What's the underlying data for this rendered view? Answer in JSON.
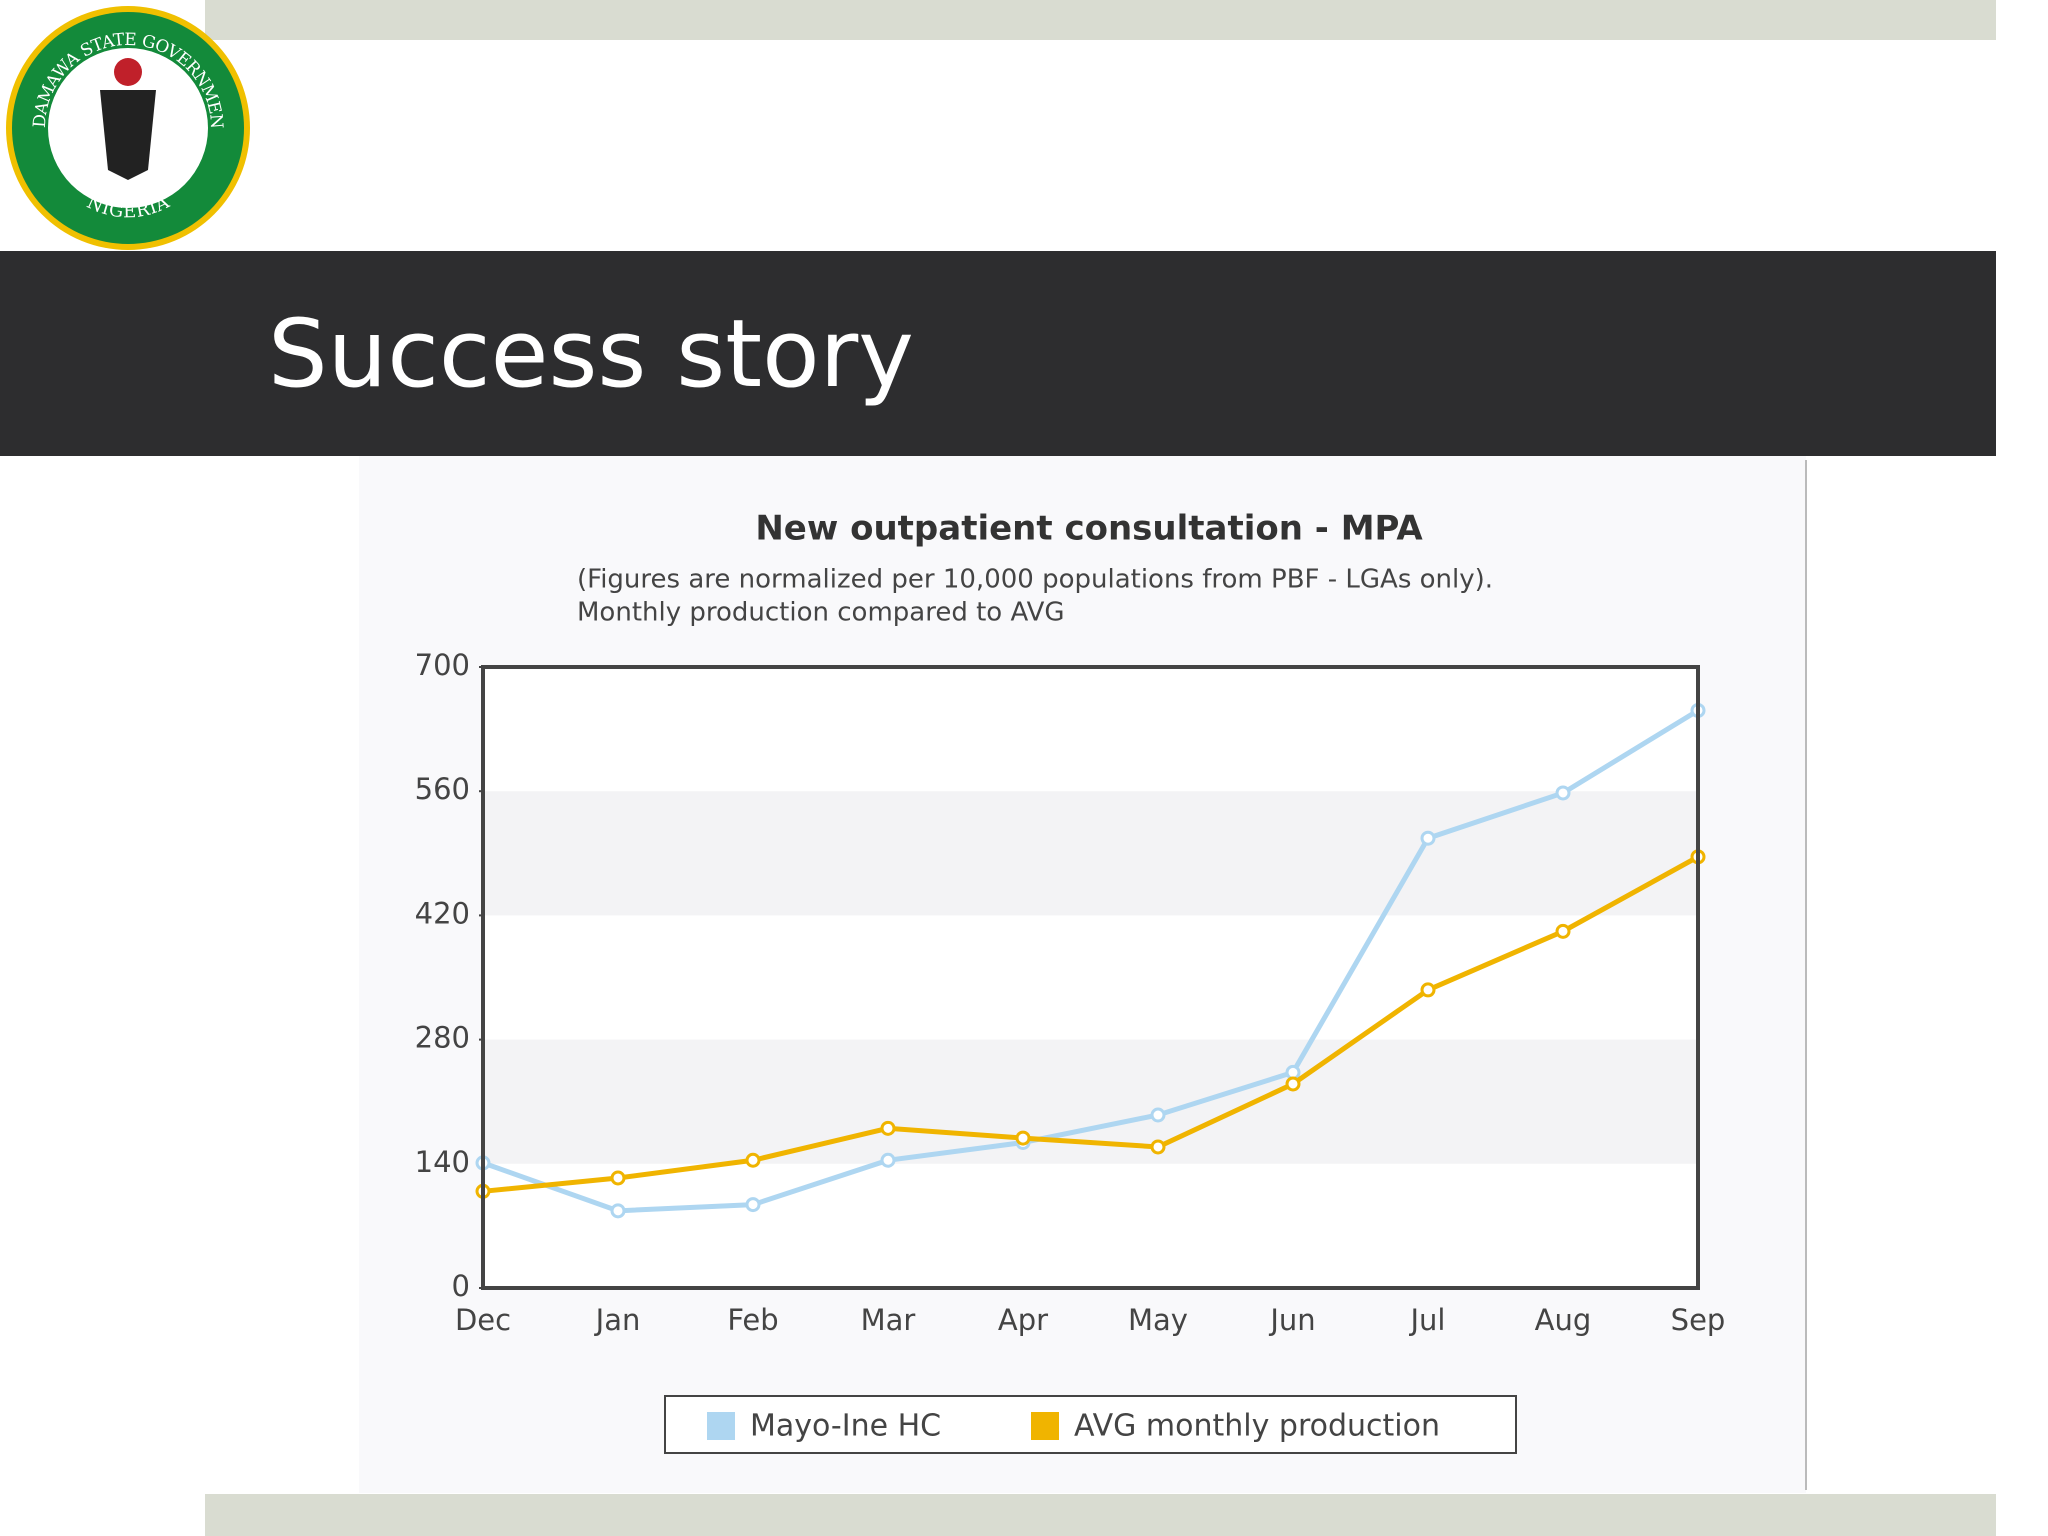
{
  "logo": {
    "top_text": "ADAMAWA STATE GOVERNMENT",
    "bottom_text": "NIGERIA"
  },
  "header": {
    "title": "Success story"
  },
  "chart_data": {
    "type": "line",
    "title": "New outpatient consultation - MPA",
    "subtitle": [
      "(Figures are normalized per 10,000 populations from PBF - LGAs only).",
      "Monthly production compared to AVG"
    ],
    "categories": [
      "Dec",
      "Jan",
      "Feb",
      "Mar",
      "Apr",
      "May",
      "Jun",
      "Jul",
      "Aug",
      "Sep"
    ],
    "series": [
      {
        "name": "Mayo-Ine HC",
        "color": "#aed6f1",
        "values": [
          141,
          87,
          94,
          144,
          164,
          195,
          243,
          507,
          558,
          651
        ]
      },
      {
        "name": "AVG monthly production",
        "color": "#f0b400",
        "values": [
          109,
          124,
          144,
          180,
          169,
          159,
          230,
          336,
          402,
          486
        ]
      }
    ],
    "ylim": [
      0,
      700
    ],
    "yticks": [
      0,
      140,
      280,
      420,
      560,
      700
    ],
    "band_grid": true,
    "legend": "bottom"
  }
}
